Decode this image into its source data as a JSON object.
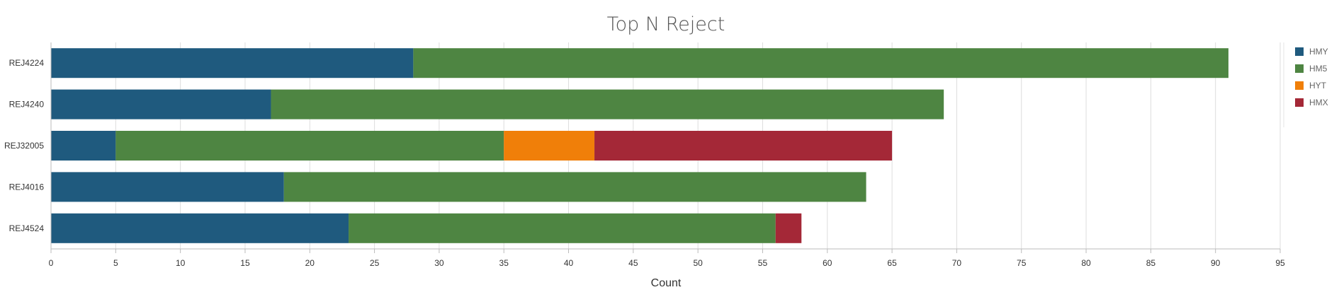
{
  "chart_data": {
    "type": "bar",
    "orientation": "horizontal",
    "stacked": true,
    "title": "Top N Reject",
    "xlabel": "Count",
    "ylabel": "",
    "xlim": [
      0,
      95
    ],
    "x_ticks": [
      0,
      5,
      10,
      15,
      20,
      25,
      30,
      35,
      40,
      45,
      50,
      55,
      60,
      65,
      70,
      75,
      80,
      85,
      90,
      95
    ],
    "grid": true,
    "legend_position": "right",
    "categories": [
      "REJ4224",
      "REJ4240",
      "REJ32005",
      "REJ4016",
      "REJ4524"
    ],
    "series": [
      {
        "name": "HMY",
        "color": "#1f5a7e",
        "values": [
          28,
          17,
          5,
          18,
          23
        ]
      },
      {
        "name": "HM5",
        "color": "#4e8542",
        "values": [
          63,
          52,
          30,
          45,
          33
        ]
      },
      {
        "name": "HYT",
        "color": "#f07f09",
        "values": [
          0,
          0,
          7,
          0,
          0
        ]
      },
      {
        "name": "HMX",
        "color": "#a42837",
        "values": [
          0,
          0,
          23,
          0,
          2
        ]
      }
    ]
  }
}
